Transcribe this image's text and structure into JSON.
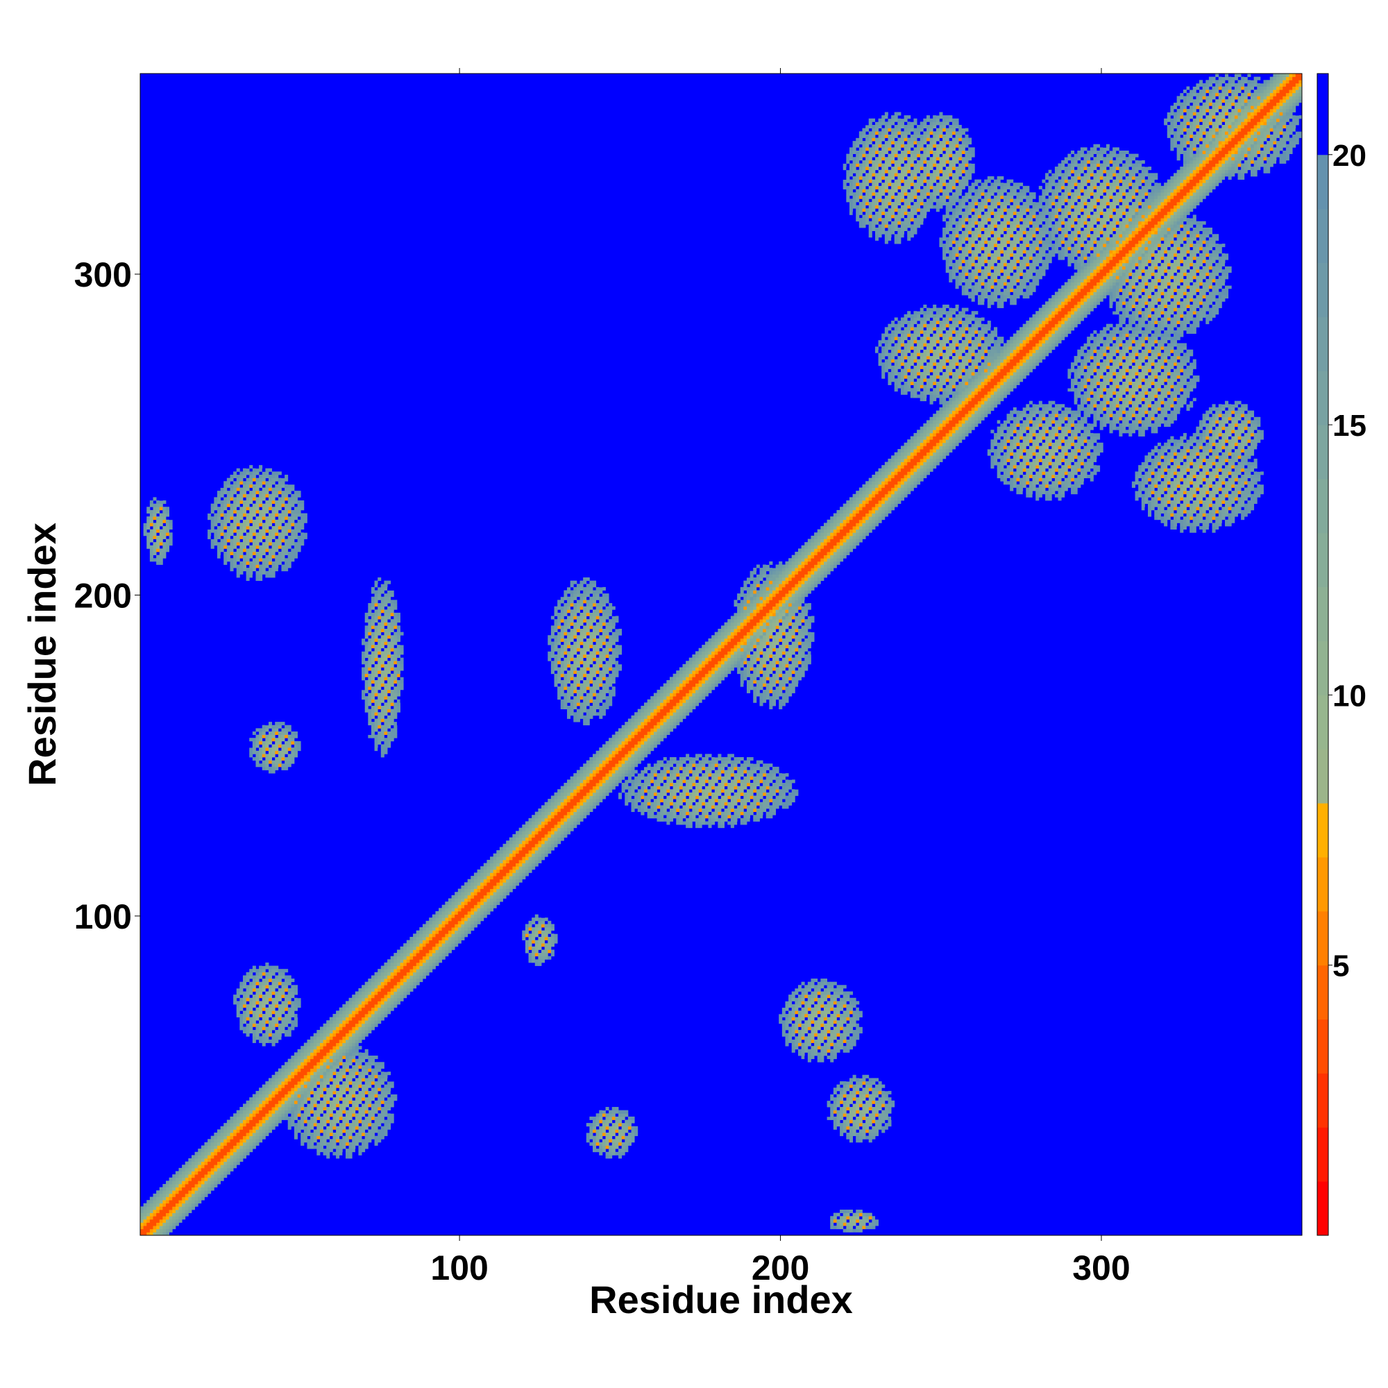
{
  "chart_data": {
    "type": "heatmap",
    "title": "",
    "xlabel": "Residue index",
    "ylabel": "Residue index",
    "xlim": [
      1,
      362
    ],
    "ylim": [
      1,
      362
    ],
    "x_ticks": [
      100,
      200,
      300
    ],
    "y_ticks": [
      100,
      200,
      300
    ],
    "x_tick_labels": [
      "100",
      "200",
      "300"
    ],
    "y_tick_labels": [
      "100",
      "200",
      "300"
    ],
    "colorbar": {
      "range": [
        0,
        21.5
      ],
      "ticks": [
        5,
        10,
        15,
        20
      ],
      "tick_labels": [
        "5",
        "10",
        "15",
        "20"
      ],
      "levels": [
        {
          "max": 1,
          "color": "#ff0000"
        },
        {
          "max": 2,
          "color": "#ff1a00"
        },
        {
          "max": 3,
          "color": "#ff3300"
        },
        {
          "max": 4,
          "color": "#ff4d00"
        },
        {
          "max": 5,
          "color": "#ff6600"
        },
        {
          "max": 6,
          "color": "#ff8000"
        },
        {
          "max": 7,
          "color": "#ff9900"
        },
        {
          "max": 8,
          "color": "#ffb000"
        },
        {
          "max": 9,
          "color": "#9cb58a"
        },
        {
          "max": 10,
          "color": "#97b68e"
        },
        {
          "max": 11,
          "color": "#92b391"
        },
        {
          "max": 12,
          "color": "#8db094"
        },
        {
          "max": 13,
          "color": "#87ad98"
        },
        {
          "max": 14,
          "color": "#82aa9b"
        },
        {
          "max": 15,
          "color": "#7da69f"
        },
        {
          "max": 16,
          "color": "#78a2a2"
        },
        {
          "max": 17,
          "color": "#739ea5"
        },
        {
          "max": 18,
          "color": "#6e9aa8"
        },
        {
          "max": 19,
          "color": "#6996ab"
        },
        {
          "max": 20,
          "color": "#6492ae"
        },
        {
          "max": 21.5,
          "color": "#0000ff"
        }
      ]
    },
    "description_of_matrix": "Symmetric residue-residue distance map (362 x 362). Red diagonal band (distance < 8); green/teal contact patches (8-20); blue background (> 20).",
    "features": {
      "diagonal": {
        "from": 1,
        "to": 362
      },
      "patches": [
        {
          "i": [
            70,
            82
          ],
          "j": [
            150,
            205
          ]
        },
        {
          "i": [
            22,
            52
          ],
          "j": [
            205,
            240
          ]
        },
        {
          "i": [
            128,
            150
          ],
          "j": [
            160,
            205
          ]
        },
        {
          "i": [
            120,
            130
          ],
          "j": [
            85,
            100
          ]
        },
        {
          "i": [
            150,
            205
          ],
          "j": [
            128,
            150
          ]
        },
        {
          "i": [
            185,
            210
          ],
          "j": [
            165,
            210
          ]
        },
        {
          "i": [
            200,
            225
          ],
          "j": [
            55,
            80
          ]
        },
        {
          "i": [
            215,
            235
          ],
          "j": [
            30,
            50
          ]
        },
        {
          "i": [
            30,
            50
          ],
          "j": [
            60,
            85
          ]
        },
        {
          "i": [
            45,
            80
          ],
          "j": [
            25,
            60
          ]
        },
        {
          "i": [
            35,
            50
          ],
          "j": [
            145,
            160
          ]
        },
        {
          "i": [
            140,
            155
          ],
          "j": [
            25,
            40
          ]
        },
        {
          "i": [
            215,
            230
          ],
          "j": [
            2,
            8
          ]
        },
        {
          "i": [
            2,
            10
          ],
          "j": [
            210,
            230
          ]
        },
        {
          "i": [
            230,
            270
          ],
          "j": [
            260,
            290
          ]
        },
        {
          "i": [
            265,
            300
          ],
          "j": [
            230,
            260
          ]
        },
        {
          "i": [
            280,
            320
          ],
          "j": [
            300,
            340
          ]
        },
        {
          "i": [
            300,
            340
          ],
          "j": [
            280,
            320
          ]
        },
        {
          "i": [
            320,
            362
          ],
          "j": [
            330,
            362
          ]
        },
        {
          "i": [
            240,
            260
          ],
          "j": [
            320,
            350
          ]
        },
        {
          "i": [
            330,
            350
          ],
          "j": [
            240,
            260
          ]
        },
        {
          "i": [
            250,
            285
          ],
          "j": [
            290,
            330
          ]
        },
        {
          "i": [
            290,
            330
          ],
          "j": [
            250,
            285
          ]
        },
        {
          "i": [
            310,
            350
          ],
          "j": [
            220,
            250
          ]
        },
        {
          "i": [
            220,
            250
          ],
          "j": [
            310,
            350
          ]
        }
      ]
    }
  }
}
